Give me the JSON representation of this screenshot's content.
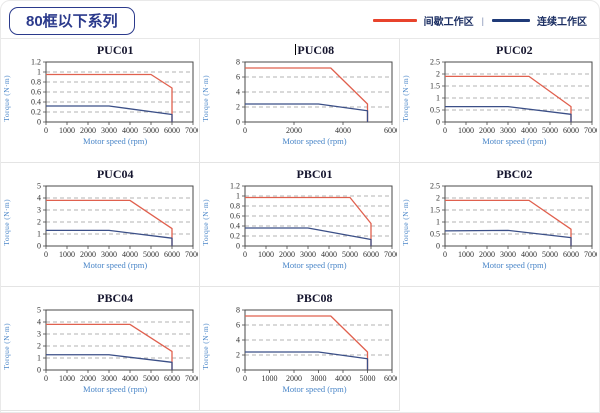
{
  "page": {
    "title": "80框以下系列"
  },
  "legend": {
    "items": [
      {
        "label": "间歇工作区",
        "color": "#e8432c"
      },
      {
        "label": "连续工作区",
        "color": "#1f3a78"
      }
    ],
    "separator": "|"
  },
  "colors": {
    "intermittent": "#e0604e",
    "continuous": "#3b4f87",
    "axis_label": "#4a86c8",
    "tick": "#333333",
    "grid": "#9a9a9a",
    "plot_border": "#4a4a4a",
    "badge": "#2b3a8c"
  },
  "chart_data": [
    {
      "type": "line",
      "title": "PUC01",
      "cursor": false,
      "xlabel": "Motor speed (rpm)",
      "ylabel": "Torque (N·m)",
      "xlim": [
        0,
        7000
      ],
      "xticks": [
        0,
        1000,
        2000,
        3000,
        4000,
        5000,
        6000,
        7000
      ],
      "ylim": [
        0,
        1.2
      ],
      "yticks": [
        0,
        0.2,
        0.4,
        0.6,
        0.8,
        1,
        1.2
      ],
      "grid": true,
      "legend_position": "none",
      "series": [
        {
          "name": "间歇工作区",
          "color_key": "intermittent",
          "points": [
            [
              0,
              0.95
            ],
            [
              5000,
              0.95
            ],
            [
              6000,
              0.68
            ],
            [
              6000,
              0
            ]
          ]
        },
        {
          "name": "连续工作区",
          "color_key": "continuous",
          "points": [
            [
              0,
              0.32
            ],
            [
              3000,
              0.32
            ],
            [
              6000,
              0.15
            ],
            [
              6000,
              0
            ]
          ]
        }
      ]
    },
    {
      "type": "line",
      "title": "PUC08",
      "cursor": true,
      "xlabel": "Motor speed (rpm)",
      "ylabel": "Torque (N·m)",
      "xlim": [
        0,
        6000
      ],
      "xticks": [
        0,
        2000,
        4000,
        6000
      ],
      "ylim": [
        0,
        8
      ],
      "yticks": [
        0,
        2,
        4,
        6,
        8
      ],
      "grid": true,
      "legend_position": "none",
      "series": [
        {
          "name": "间歇工作区",
          "color_key": "intermittent",
          "points": [
            [
              0,
              7.2
            ],
            [
              3500,
              7.2
            ],
            [
              5000,
              2.4
            ],
            [
              5000,
              0
            ]
          ]
        },
        {
          "name": "连续工作区",
          "color_key": "continuous",
          "points": [
            [
              0,
              2.4
            ],
            [
              3000,
              2.4
            ],
            [
              5000,
              1.5
            ],
            [
              5000,
              0
            ]
          ]
        }
      ]
    },
    {
      "type": "line",
      "title": "PUC02",
      "cursor": false,
      "xlabel": "Motor speed (rpm)",
      "ylabel": "Torque (N·m)",
      "xlim": [
        0,
        7000
      ],
      "xticks": [
        0,
        1000,
        2000,
        3000,
        4000,
        5000,
        6000,
        7000
      ],
      "ylim": [
        0,
        2.5
      ],
      "yticks": [
        0,
        0.5,
        1,
        1.5,
        2,
        2.5
      ],
      "grid": true,
      "legend_position": "none",
      "series": [
        {
          "name": "间歇工作区",
          "color_key": "intermittent",
          "points": [
            [
              0,
              1.9
            ],
            [
              4000,
              1.9
            ],
            [
              6000,
              0.64
            ],
            [
              6000,
              0
            ]
          ]
        },
        {
          "name": "连续工作区",
          "color_key": "continuous",
          "points": [
            [
              0,
              0.64
            ],
            [
              3000,
              0.64
            ],
            [
              6000,
              0.32
            ],
            [
              6000,
              0
            ]
          ]
        }
      ]
    },
    {
      "type": "line",
      "title": "PUC04",
      "cursor": false,
      "xlabel": "Motor speed (rpm)",
      "ylabel": "Torque (N·m)",
      "xlim": [
        0,
        7000
      ],
      "xticks": [
        0,
        1000,
        2000,
        3000,
        4000,
        5000,
        6000,
        7000
      ],
      "ylim": [
        0,
        5
      ],
      "yticks": [
        0,
        1,
        2,
        3,
        4,
        5
      ],
      "grid": true,
      "legend_position": "none",
      "series": [
        {
          "name": "间歇工作区",
          "color_key": "intermittent",
          "points": [
            [
              0,
              3.8
            ],
            [
              4000,
              3.8
            ],
            [
              6000,
              1.45
            ],
            [
              6000,
              0
            ]
          ]
        },
        {
          "name": "连续工作区",
          "color_key": "continuous",
          "points": [
            [
              0,
              1.3
            ],
            [
              3000,
              1.3
            ],
            [
              6000,
              0.65
            ],
            [
              6000,
              0
            ]
          ]
        }
      ]
    },
    {
      "type": "line",
      "title": "PBC01",
      "cursor": false,
      "xlabel": "Motor speed (rpm)",
      "ylabel": "Torque (N·m)",
      "xlim": [
        0,
        7000
      ],
      "xticks": [
        0,
        1000,
        2000,
        3000,
        4000,
        5000,
        6000,
        7000
      ],
      "ylim": [
        0,
        1.2
      ],
      "yticks": [
        0,
        0.2,
        0.4,
        0.6,
        0.8,
        1,
        1.2
      ],
      "grid": true,
      "legend_position": "none",
      "series": [
        {
          "name": "间歇工作区",
          "color_key": "intermittent",
          "points": [
            [
              0,
              0.97
            ],
            [
              5000,
              0.97
            ],
            [
              6000,
              0.45
            ],
            [
              6000,
              0
            ]
          ]
        },
        {
          "name": "连续工作区",
          "color_key": "continuous",
          "points": [
            [
              0,
              0.36
            ],
            [
              3000,
              0.36
            ],
            [
              6000,
              0.13
            ],
            [
              6000,
              0
            ]
          ]
        }
      ]
    },
    {
      "type": "line",
      "title": "PBC02",
      "cursor": false,
      "xlabel": "Motor speed (rpm)",
      "ylabel": "Torque (N·m)",
      "xlim": [
        0,
        7000
      ],
      "xticks": [
        0,
        1000,
        2000,
        3000,
        4000,
        5000,
        6000,
        7000
      ],
      "ylim": [
        0,
        2.5
      ],
      "yticks": [
        0,
        0.5,
        1,
        1.5,
        2,
        2.5
      ],
      "grid": true,
      "legend_position": "none",
      "series": [
        {
          "name": "间歇工作区",
          "color_key": "intermittent",
          "points": [
            [
              0,
              1.9
            ],
            [
              4000,
              1.9
            ],
            [
              6000,
              0.7
            ],
            [
              6000,
              0
            ]
          ]
        },
        {
          "name": "连续工作区",
          "color_key": "continuous",
          "points": [
            [
              0,
              0.63
            ],
            [
              3000,
              0.65
            ],
            [
              6000,
              0.35
            ],
            [
              6000,
              0
            ]
          ]
        }
      ]
    },
    {
      "type": "line",
      "title": "PBC04",
      "cursor": false,
      "xlabel": "Motor speed (rpm)",
      "ylabel": "Torque (N·m)",
      "xlim": [
        0,
        7000
      ],
      "xticks": [
        0,
        1000,
        2000,
        3000,
        4000,
        5000,
        6000,
        7000
      ],
      "ylim": [
        0,
        5
      ],
      "yticks": [
        0,
        1,
        2,
        3,
        4,
        5
      ],
      "grid": true,
      "legend_position": "none",
      "series": [
        {
          "name": "间歇工作区",
          "color_key": "intermittent",
          "points": [
            [
              0,
              3.8
            ],
            [
              4000,
              3.8
            ],
            [
              6000,
              1.55
            ],
            [
              6000,
              0
            ]
          ]
        },
        {
          "name": "连续工作区",
          "color_key": "continuous",
          "points": [
            [
              0,
              1.27
            ],
            [
              3000,
              1.27
            ],
            [
              6000,
              0.64
            ],
            [
              6000,
              0
            ]
          ]
        }
      ]
    },
    {
      "type": "line",
      "title": "PBC08",
      "cursor": false,
      "xlabel": "Motor speed (rpm)",
      "ylabel": "Torque (N·m)",
      "xlim": [
        0,
        6000
      ],
      "xticks": [
        0,
        1000,
        2000,
        3000,
        4000,
        5000,
        6000
      ],
      "ylim": [
        0,
        8
      ],
      "yticks": [
        0,
        2,
        4,
        6,
        8
      ],
      "grid": true,
      "legend_position": "none",
      "series": [
        {
          "name": "间歇工作区",
          "color_key": "intermittent",
          "points": [
            [
              0,
              7.2
            ],
            [
              3500,
              7.2
            ],
            [
              5000,
              2.4
            ],
            [
              5000,
              0
            ]
          ]
        },
        {
          "name": "连续工作区",
          "color_key": "continuous",
          "points": [
            [
              0,
              2.4
            ],
            [
              3000,
              2.4
            ],
            [
              5000,
              1.5
            ],
            [
              5000,
              0
            ]
          ]
        }
      ]
    }
  ]
}
